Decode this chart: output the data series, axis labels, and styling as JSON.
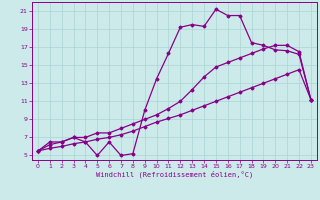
{
  "xlabel": "Windchill (Refroidissement éolien,°C)",
  "xlim": [
    -0.5,
    23.5
  ],
  "ylim": [
    4.5,
    22
  ],
  "xticks": [
    0,
    1,
    2,
    3,
    4,
    5,
    6,
    7,
    8,
    9,
    10,
    11,
    12,
    13,
    14,
    15,
    16,
    17,
    18,
    19,
    20,
    21,
    22,
    23
  ],
  "yticks": [
    5,
    7,
    9,
    11,
    13,
    15,
    17,
    19,
    21
  ],
  "background_color": "#cceaea",
  "grid_color": "#aad4d4",
  "line_color": "#880088",
  "line1_x": [
    0,
    1,
    2,
    3,
    4,
    5,
    6,
    7,
    8,
    9,
    10,
    11,
    12,
    13,
    14,
    15,
    16,
    17,
    18,
    19,
    20,
    21,
    22,
    23
  ],
  "line1_y": [
    5.5,
    6.5,
    6.5,
    7.0,
    6.5,
    5.0,
    6.5,
    5.0,
    5.2,
    10.0,
    13.5,
    16.3,
    19.2,
    19.5,
    19.3,
    21.2,
    20.5,
    20.5,
    17.5,
    17.2,
    16.7,
    16.6,
    16.2,
    11.2
  ],
  "line2_x": [
    0,
    1,
    2,
    3,
    4,
    5,
    6,
    7,
    8,
    9,
    10,
    11,
    12,
    13,
    14,
    15,
    16,
    17,
    18,
    19,
    20,
    21,
    22,
    23
  ],
  "line2_y": [
    5.5,
    6.2,
    6.5,
    7.0,
    7.0,
    7.5,
    7.5,
    8.0,
    8.5,
    9.0,
    9.5,
    10.2,
    11.0,
    12.3,
    13.7,
    14.8,
    15.3,
    15.8,
    16.3,
    16.8,
    17.2,
    17.2,
    16.5,
    11.2
  ],
  "line3_x": [
    0,
    1,
    2,
    3,
    4,
    5,
    6,
    7,
    8,
    9,
    10,
    11,
    12,
    13,
    14,
    15,
    16,
    17,
    18,
    19,
    20,
    21,
    22,
    23
  ],
  "line3_y": [
    5.5,
    5.8,
    6.0,
    6.3,
    6.5,
    6.8,
    7.0,
    7.3,
    7.7,
    8.2,
    8.7,
    9.1,
    9.5,
    10.0,
    10.5,
    11.0,
    11.5,
    12.0,
    12.5,
    13.0,
    13.5,
    14.0,
    14.5,
    11.2
  ]
}
